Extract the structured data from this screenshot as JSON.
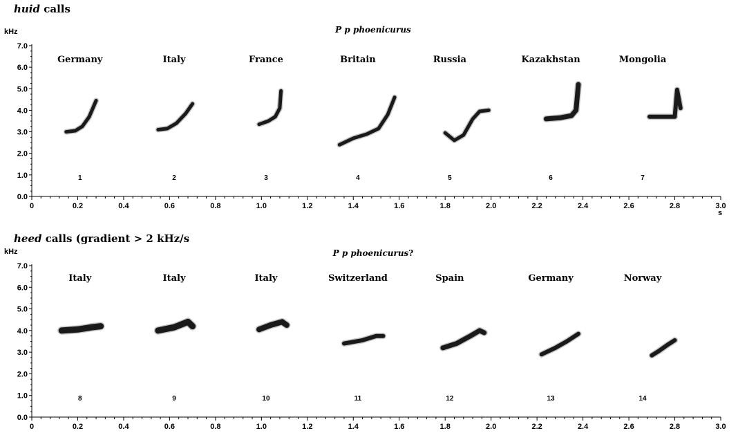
{
  "panels": [
    {
      "heading_em": "huid",
      "heading_rest": " calls",
      "subtitle_em": "P p phoenicurus",
      "subtitle_rest": "",
      "y_unit": "kHz",
      "x_unit": "s"
    },
    {
      "heading_em": "heed",
      "heading_rest": " calls (gradient > 2 kHz/s",
      "subtitle_em": "P p phoenicurus",
      "subtitle_rest": "?",
      "y_unit": "kHz",
      "x_unit": ""
    }
  ],
  "chart_data": [
    {
      "type": "line",
      "title": "P p phoenicurus",
      "xlabel": "s",
      "ylabel": "kHz",
      "xlim": [
        0,
        3.0
      ],
      "ylim": [
        0,
        7.0
      ],
      "x_ticks": [
        "0",
        "0.2",
        "0.4",
        "0.6",
        "0.8",
        "1.0",
        "1.2",
        "1.4",
        "1.6",
        "1.8",
        "2.0",
        "2.2",
        "2.4",
        "2.6",
        "2.8",
        "3.0"
      ],
      "y_ticks": [
        "0.0",
        "1.0",
        "2.0",
        "3.0",
        "4.0",
        "5.0",
        "6.0",
        "7.0"
      ],
      "series": [
        {
          "name": "Germany",
          "number": "1",
          "label_x": 0.21,
          "width": 5,
          "points": [
            [
              0.15,
              3.0
            ],
            [
              0.19,
              3.05
            ],
            [
              0.22,
              3.25
            ],
            [
              0.25,
              3.7
            ],
            [
              0.28,
              4.45
            ]
          ]
        },
        {
          "name": "Italy",
          "number": "2",
          "label_x": 0.62,
          "width": 5,
          "points": [
            [
              0.55,
              3.1
            ],
            [
              0.59,
              3.15
            ],
            [
              0.63,
              3.4
            ],
            [
              0.67,
              3.85
            ],
            [
              0.7,
              4.3
            ]
          ]
        },
        {
          "name": "France",
          "number": "3",
          "label_x": 1.02,
          "width": 5,
          "points": [
            [
              0.99,
              3.35
            ],
            [
              1.03,
              3.5
            ],
            [
              1.06,
              3.7
            ],
            [
              1.08,
              4.1
            ],
            [
              1.085,
              4.9
            ]
          ]
        },
        {
          "name": "Britain",
          "number": "4",
          "label_x": 1.42,
          "width": 5,
          "points": [
            [
              1.34,
              2.4
            ],
            [
              1.4,
              2.7
            ],
            [
              1.46,
              2.9
            ],
            [
              1.51,
              3.15
            ],
            [
              1.55,
              3.8
            ],
            [
              1.58,
              4.6
            ]
          ]
        },
        {
          "name": "Russia",
          "number": "5",
          "label_x": 1.82,
          "width": 5,
          "points": [
            [
              1.8,
              2.95
            ],
            [
              1.84,
              2.6
            ],
            [
              1.88,
              2.85
            ],
            [
              1.92,
              3.6
            ],
            [
              1.95,
              3.95
            ],
            [
              1.99,
              4.0
            ]
          ]
        },
        {
          "name": "Kazakhstan",
          "number": "6",
          "label_x": 2.26,
          "width": 7,
          "points": [
            [
              2.24,
              3.6
            ],
            [
              2.3,
              3.65
            ],
            [
              2.35,
              3.75
            ],
            [
              2.37,
              4.0
            ],
            [
              2.38,
              5.2
            ]
          ]
        },
        {
          "name": "Mongolia",
          "number": "7",
          "label_x": 2.66,
          "width": 6,
          "points": [
            [
              2.69,
              3.7
            ],
            [
              2.76,
              3.7
            ],
            [
              2.8,
              3.7
            ],
            [
              2.81,
              4.95
            ],
            [
              2.825,
              4.1
            ]
          ]
        }
      ]
    },
    {
      "type": "line",
      "title": "P p phoenicurus?",
      "xlabel": "",
      "ylabel": "kHz",
      "xlim": [
        0,
        3.0
      ],
      "ylim": [
        0,
        7.0
      ],
      "x_ticks": [
        "0",
        "0.2",
        "0.4",
        "0.6",
        "0.8",
        "1.0",
        "1.2",
        "1.4",
        "1.6",
        "1.8",
        "2.0",
        "2.2",
        "2.4",
        "2.6",
        "2.8",
        "3.0"
      ],
      "y_ticks": [
        "0.0",
        "1.0",
        "2.0",
        "3.0",
        "4.0",
        "5.0",
        "6.0",
        "7.0"
      ],
      "series": [
        {
          "name": "Italy",
          "number": "8",
          "label_x": 0.21,
          "width": 9,
          "points": [
            [
              0.13,
              4.0
            ],
            [
              0.2,
              4.05
            ],
            [
              0.26,
              4.15
            ],
            [
              0.3,
              4.2
            ]
          ]
        },
        {
          "name": "Italy",
          "number": "9",
          "label_x": 0.62,
          "width": 9,
          "points": [
            [
              0.55,
              4.0
            ],
            [
              0.62,
              4.15
            ],
            [
              0.68,
              4.4
            ],
            [
              0.7,
              4.2
            ]
          ]
        },
        {
          "name": "Italy",
          "number": "10",
          "label_x": 1.02,
          "width": 8,
          "points": [
            [
              0.99,
              4.05
            ],
            [
              1.04,
              4.25
            ],
            [
              1.09,
              4.4
            ],
            [
              1.11,
              4.25
            ]
          ]
        },
        {
          "name": "Switzerland",
          "number": "11",
          "label_x": 1.42,
          "width": 6,
          "points": [
            [
              1.36,
              3.4
            ],
            [
              1.44,
              3.55
            ],
            [
              1.5,
              3.75
            ],
            [
              1.53,
              3.75
            ]
          ]
        },
        {
          "name": "Spain",
          "number": "12",
          "label_x": 1.82,
          "width": 7,
          "points": [
            [
              1.79,
              3.2
            ],
            [
              1.85,
              3.4
            ],
            [
              1.91,
              3.75
            ],
            [
              1.95,
              4.0
            ],
            [
              1.97,
              3.9
            ]
          ]
        },
        {
          "name": "Germany",
          "number": "13",
          "label_x": 2.26,
          "width": 6,
          "points": [
            [
              2.22,
              2.9
            ],
            [
              2.28,
              3.2
            ],
            [
              2.33,
              3.5
            ],
            [
              2.38,
              3.85
            ]
          ]
        },
        {
          "name": "Norway",
          "number": "14",
          "label_x": 2.66,
          "width": 6,
          "points": [
            [
              2.7,
              2.85
            ],
            [
              2.73,
              3.05
            ],
            [
              2.77,
              3.35
            ],
            [
              2.8,
              3.55
            ]
          ]
        }
      ]
    }
  ]
}
